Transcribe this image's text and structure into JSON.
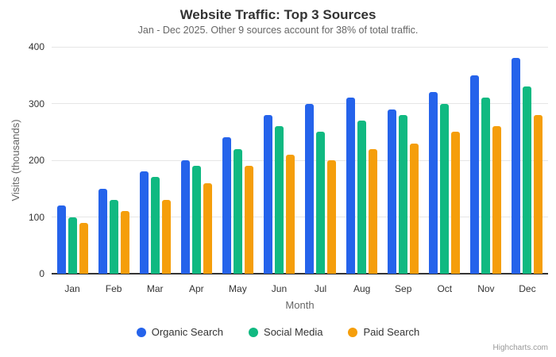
{
  "chart": {
    "title": "Website Traffic: Top 3 Sources",
    "subtitle": "Jan - Dec 2025. Other 9 sources account for 38% of total traffic.",
    "credit": "Highcharts.com"
  },
  "chart_data": {
    "type": "bar",
    "title": "Website Traffic: Top 3 Sources",
    "subtitle": "Jan - Dec 2025. Other 9 sources account for 38% of total traffic.",
    "categories": [
      "Jan",
      "Feb",
      "Mar",
      "Apr",
      "May",
      "Jun",
      "Jul",
      "Aug",
      "Sep",
      "Oct",
      "Nov",
      "Dec"
    ],
    "series": [
      {
        "name": "Organic Search",
        "color": "#2563eb",
        "values": [
          120,
          150,
          180,
          200,
          240,
          280,
          300,
          310,
          290,
          320,
          350,
          380
        ]
      },
      {
        "name": "Social Media",
        "color": "#10b981",
        "values": [
          100,
          130,
          170,
          190,
          220,
          260,
          250,
          270,
          280,
          300,
          310,
          330
        ]
      },
      {
        "name": "Paid Search",
        "color": "#f59e0b",
        "values": [
          90,
          110,
          130,
          160,
          190,
          210,
          200,
          220,
          230,
          250,
          260,
          280
        ]
      }
    ],
    "xlabel": "Month",
    "ylabel": "Visits (thousands)",
    "ylim": [
      0,
      400
    ],
    "yticks": [
      0,
      100,
      200,
      300,
      400
    ],
    "grid": true,
    "legend_position": "bottom",
    "gridline_color": "#e6e6e6",
    "axis_line_color": "#333333"
  }
}
